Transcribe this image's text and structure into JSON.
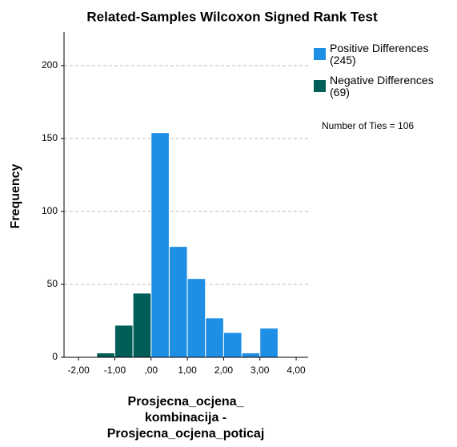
{
  "chart_data": {
    "type": "histogram",
    "title": "Related-Samples Wilcoxon Signed Rank Test",
    "xlabel": [
      "Prosjecna_ocjena_",
      "kombinacija -",
      "Prosjecna_ocjena_poticaj"
    ],
    "ylabel": "Frequency",
    "bins": [
      -1.5,
      -1.0,
      -0.5,
      0.0,
      0.5,
      1.0,
      1.5,
      2.0,
      2.5,
      3.0,
      3.5
    ],
    "series": [
      {
        "name": "Positive Differences (245)",
        "color": "#1f8fe6",
        "values": [
          null,
          null,
          null,
          154,
          76,
          54,
          27,
          17,
          3,
          20
        ]
      },
      {
        "name": "Negative Differences (69)",
        "color": "#005e59",
        "values": [
          3,
          22,
          44,
          null,
          null,
          null,
          null,
          null,
          null,
          null
        ]
      }
    ],
    "annotation": "Number of Ties = 106",
    "xlim": [
      -2.4,
      4.33
    ],
    "ylim": [
      0,
      223
    ],
    "xticks": [
      {
        "value": -2,
        "label": "-2,00"
      },
      {
        "value": -1,
        "label": "-1,00"
      },
      {
        "value": 0,
        "label": ",00"
      },
      {
        "value": 1,
        "label": "1,00"
      },
      {
        "value": 2,
        "label": "2,00"
      },
      {
        "value": 3,
        "label": "3,00"
      },
      {
        "value": 4,
        "label": "4,00"
      }
    ],
    "yticks": [
      0,
      50,
      100,
      150,
      200
    ],
    "grid": true
  }
}
